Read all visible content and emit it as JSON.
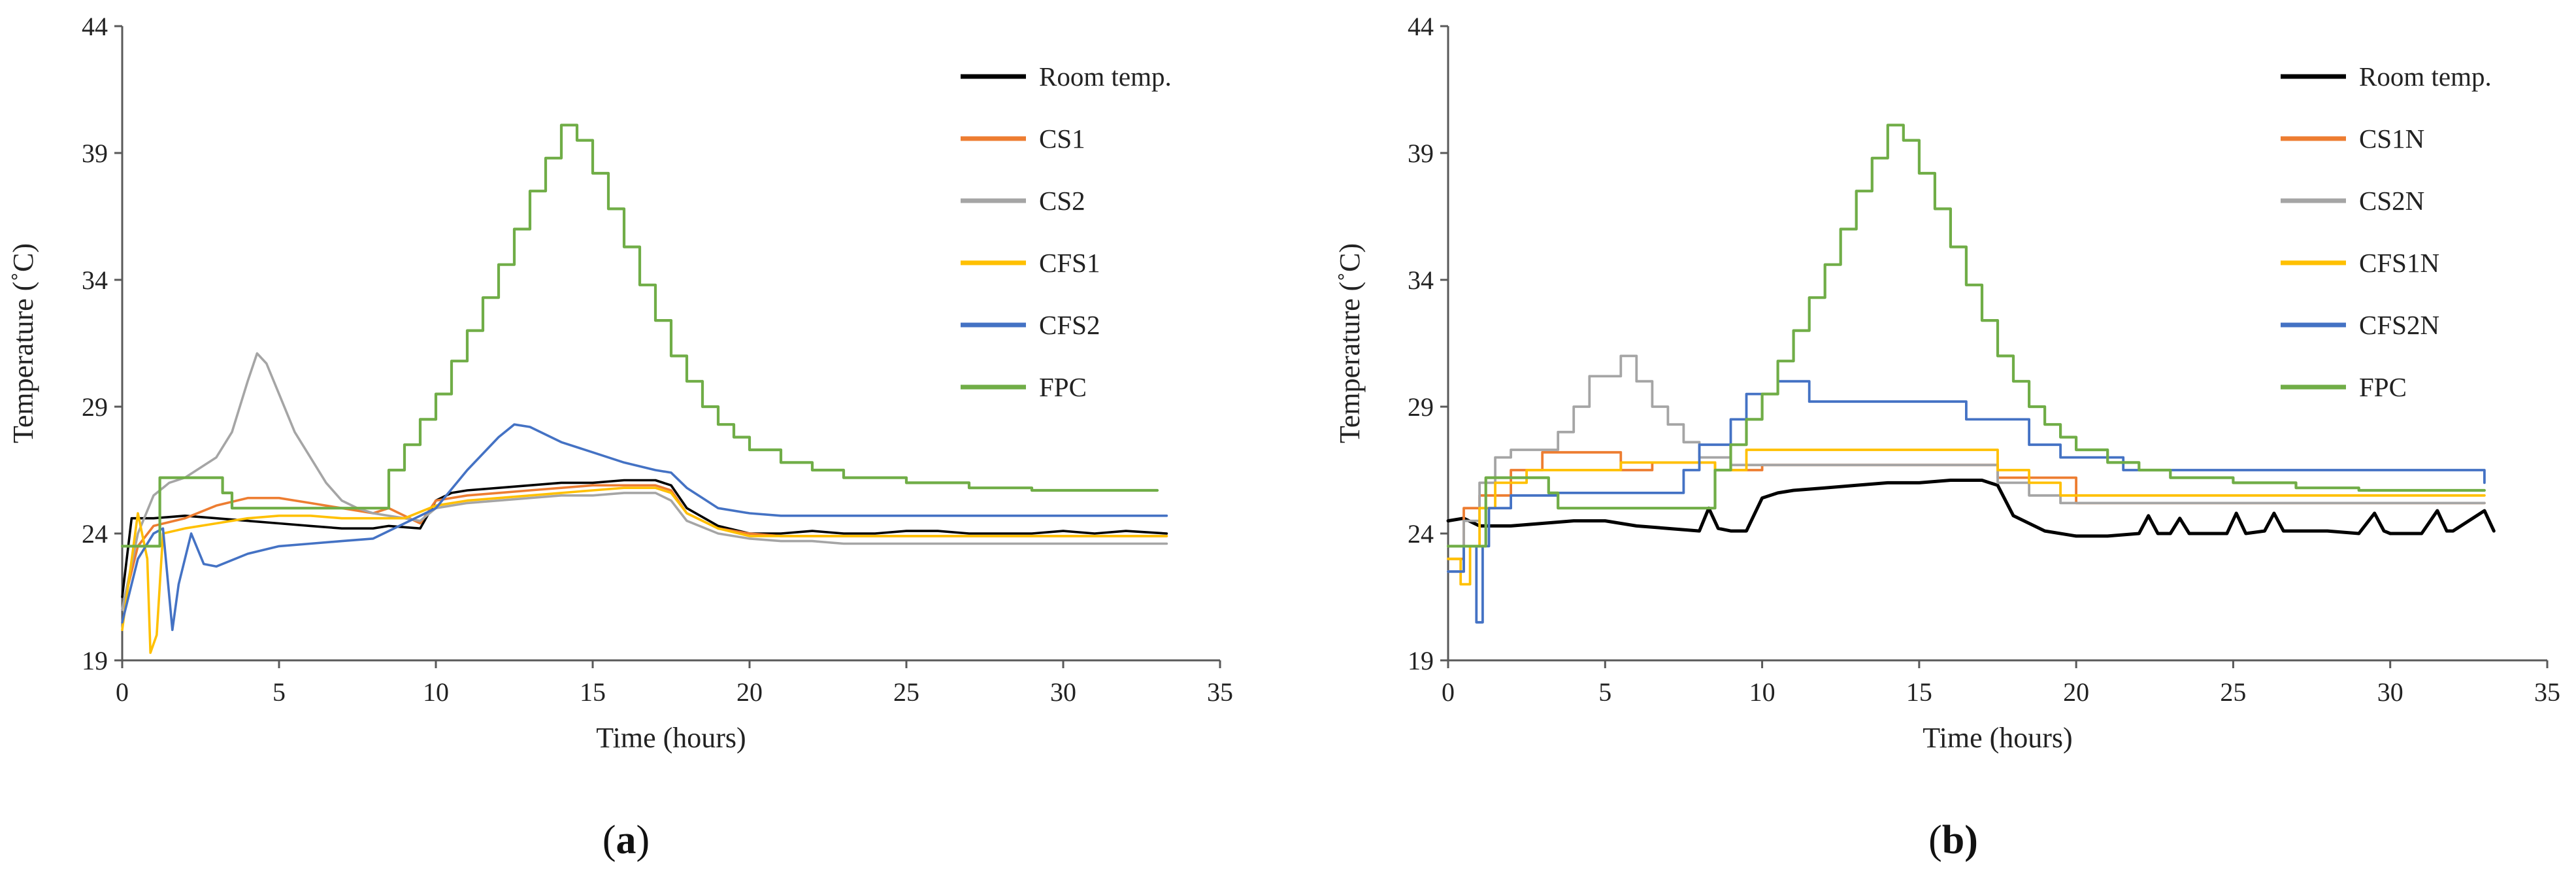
{
  "figure": {
    "panel_captions": [
      {
        "open": "(",
        "letter": "a",
        "close": ")"
      },
      {
        "open": "(",
        "letter": "b",
        "close": ")"
      }
    ]
  },
  "colors": {
    "Room temp.": "#000000",
    "orange": "#ED7D31",
    "gray": "#A5A5A5",
    "yellow": "#FFC000",
    "blue": "#4472C4",
    "green": "#70AD47"
  },
  "chart_data": [
    {
      "type": "line",
      "panel": "a",
      "title": "",
      "xlabel": "Time (hours)",
      "ylabel": "Temperature (˚C)",
      "xlim": [
        0,
        35
      ],
      "ylim": [
        19,
        44
      ],
      "xticks": [
        0,
        5,
        10,
        15,
        20,
        25,
        30,
        35
      ],
      "yticks": [
        19,
        24,
        29,
        34,
        39,
        44
      ],
      "legend_position": "top-right",
      "series": [
        {
          "name": "Room temp.",
          "color": "#000000",
          "width": 3.6,
          "step": false,
          "x": [
            0,
            0.3,
            0.6,
            1,
            2,
            3,
            4,
            5,
            6,
            7,
            8,
            8.5,
            9.5,
            10,
            10.5,
            11,
            12,
            13,
            14,
            15,
            16,
            17,
            17.5,
            18,
            19,
            20,
            21,
            22,
            23,
            24,
            25,
            26,
            27,
            28,
            29,
            30,
            31,
            32,
            33.3
          ],
          "y": [
            21.5,
            24.6,
            24.6,
            24.6,
            24.7,
            24.6,
            24.5,
            24.4,
            24.3,
            24.2,
            24.2,
            24.3,
            24.2,
            25.3,
            25.6,
            25.7,
            25.8,
            25.9,
            26.0,
            26.0,
            26.1,
            26.1,
            25.9,
            25.0,
            24.3,
            24.0,
            24.0,
            24.1,
            24.0,
            24.0,
            24.1,
            24.1,
            24.0,
            24.0,
            24.0,
            24.1,
            24.0,
            24.1,
            24.0
          ]
        },
        {
          "name": "CS1",
          "color": "#ED7D31",
          "width": 3.6,
          "step": false,
          "x": [
            0,
            0.5,
            1,
            2,
            3,
            4,
            5,
            6,
            7,
            8,
            8.5,
            9.5,
            10,
            11,
            12,
            13,
            14,
            15,
            16,
            17,
            17.5,
            18,
            19,
            20,
            21,
            22,
            23,
            24,
            25,
            26,
            27,
            28,
            29,
            30,
            31,
            32,
            33.3
          ],
          "y": [
            21.0,
            23.5,
            24.3,
            24.6,
            25.1,
            25.4,
            25.4,
            25.2,
            25.0,
            24.8,
            25.0,
            24.4,
            25.3,
            25.5,
            25.6,
            25.7,
            25.8,
            25.9,
            25.9,
            25.9,
            25.7,
            24.8,
            24.2,
            24.0,
            23.9,
            23.9,
            23.9,
            23.9,
            23.9,
            23.9,
            23.9,
            23.9,
            23.9,
            23.9,
            23.9,
            23.9,
            23.9
          ]
        },
        {
          "name": "CS2",
          "color": "#A5A5A5",
          "width": 3.6,
          "step": false,
          "x": [
            0,
            0.5,
            1,
            1.5,
            2,
            3,
            3.5,
            4,
            4.3,
            4.6,
            5,
            5.5,
            6,
            6.5,
            7,
            7.5,
            8,
            9,
            9.5,
            10,
            11,
            12,
            13,
            14,
            15,
            16,
            17,
            17.5,
            18,
            19,
            20,
            21,
            22,
            23,
            24,
            25,
            26,
            27,
            28,
            29,
            30,
            31,
            32,
            33.3
          ],
          "y": [
            21.0,
            24.0,
            25.5,
            26.0,
            26.2,
            27.0,
            28.0,
            30.0,
            31.1,
            30.7,
            29.5,
            28.0,
            27.0,
            26.0,
            25.3,
            25.0,
            24.8,
            24.6,
            24.5,
            25.0,
            25.2,
            25.3,
            25.4,
            25.5,
            25.5,
            25.6,
            25.6,
            25.3,
            24.5,
            24.0,
            23.8,
            23.7,
            23.7,
            23.6,
            23.6,
            23.6,
            23.6,
            23.6,
            23.6,
            23.6,
            23.6,
            23.6,
            23.6,
            23.6
          ]
        },
        {
          "name": "CFS1",
          "color": "#FFC000",
          "width": 3.6,
          "step": false,
          "x": [
            0,
            0.5,
            0.8,
            0.9,
            1.1,
            1.3,
            2,
            3,
            4,
            5,
            6,
            7,
            8,
            9,
            10,
            11,
            12,
            13,
            14,
            15,
            16,
            17,
            17.5,
            18,
            19,
            20,
            21,
            22,
            23,
            24,
            25,
            26,
            27,
            28,
            29,
            30,
            31,
            32,
            33.3
          ],
          "y": [
            20.2,
            24.8,
            23.0,
            19.3,
            20.0,
            24.0,
            24.2,
            24.4,
            24.6,
            24.7,
            24.7,
            24.6,
            24.6,
            24.6,
            25.1,
            25.3,
            25.4,
            25.5,
            25.6,
            25.7,
            25.8,
            25.8,
            25.6,
            24.8,
            24.2,
            23.9,
            23.9,
            23.9,
            23.9,
            23.9,
            23.9,
            23.9,
            23.9,
            23.9,
            23.9,
            23.9,
            23.9,
            23.9,
            23.9
          ]
        },
        {
          "name": "CFS2",
          "color": "#4472C4",
          "width": 3.6,
          "step": false,
          "x": [
            0,
            0.5,
            1,
            1.3,
            1.6,
            1.8,
            2.2,
            2.6,
            3,
            4,
            5,
            6,
            7,
            8,
            9,
            10,
            11,
            12,
            12.5,
            13,
            14,
            15,
            16,
            17,
            17.5,
            18,
            19,
            20,
            21,
            22,
            23,
            24,
            25,
            26,
            27,
            28,
            29,
            30,
            31,
            32,
            33.3
          ],
          "y": [
            20.5,
            23.0,
            24.0,
            24.2,
            20.2,
            22.0,
            24.0,
            22.8,
            22.7,
            23.2,
            23.5,
            23.6,
            23.7,
            23.8,
            24.4,
            25.0,
            26.5,
            27.8,
            28.3,
            28.2,
            27.6,
            27.2,
            26.8,
            26.5,
            26.4,
            25.8,
            25.0,
            24.8,
            24.7,
            24.7,
            24.7,
            24.7,
            24.7,
            24.7,
            24.7,
            24.7,
            24.7,
            24.7,
            24.7,
            24.7,
            24.7
          ]
        },
        {
          "name": "FPC",
          "color": "#70AD47",
          "width": 4.2,
          "step": true,
          "x": [
            0,
            1.2,
            1.5,
            3.2,
            3.5,
            7.5,
            8.5,
            9,
            9.5,
            10,
            10.5,
            11,
            11.5,
            12,
            12.5,
            13,
            13.5,
            14,
            14.5,
            15,
            15.5,
            16,
            16.5,
            17,
            17.5,
            18,
            18.5,
            19,
            19.5,
            20,
            21,
            22,
            23,
            25,
            27,
            29,
            33
          ],
          "y": [
            23.5,
            26.2,
            26.2,
            25.6,
            25.0,
            25.0,
            26.5,
            27.5,
            28.5,
            29.5,
            30.8,
            32.0,
            33.3,
            34.6,
            36.0,
            37.5,
            38.8,
            40.1,
            39.5,
            38.2,
            36.8,
            35.3,
            33.8,
            32.4,
            31.0,
            30.0,
            29.0,
            28.3,
            27.8,
            27.3,
            26.8,
            26.5,
            26.2,
            26.0,
            25.8,
            25.7,
            25.7
          ]
        }
      ]
    },
    {
      "type": "line",
      "panel": "b",
      "title": "",
      "xlabel": "Time (hours)",
      "ylabel": "Temperature (˚C)",
      "xlim": [
        0,
        35
      ],
      "ylim": [
        19,
        44
      ],
      "xticks": [
        0,
        5,
        10,
        15,
        20,
        25,
        30,
        35
      ],
      "yticks": [
        19,
        24,
        29,
        34,
        39,
        44
      ],
      "legend_position": "top-right",
      "series": [
        {
          "name": "Room temp.",
          "color": "#000000",
          "width": 5.0,
          "step": false,
          "x": [
            0,
            0.5,
            1,
            2,
            3,
            4,
            5,
            6,
            7,
            8,
            8.3,
            8.6,
            9,
            9.5,
            10,
            10.5,
            11,
            12,
            13,
            14,
            15,
            16,
            17,
            17.5,
            18,
            19,
            20,
            21,
            22,
            22.3,
            22.6,
            23,
            23.3,
            23.6,
            24,
            24.8,
            25.1,
            25.4,
            26,
            26.3,
            26.6,
            27,
            28,
            29,
            29.5,
            29.8,
            30,
            31,
            31.5,
            31.8,
            32,
            33,
            33.3
          ],
          "y": [
            24.5,
            24.6,
            24.3,
            24.3,
            24.4,
            24.5,
            24.5,
            24.3,
            24.2,
            24.1,
            25.0,
            24.2,
            24.1,
            24.1,
            25.4,
            25.6,
            25.7,
            25.8,
            25.9,
            26.0,
            26.0,
            26.1,
            26.1,
            25.9,
            24.7,
            24.1,
            23.9,
            23.9,
            24.0,
            24.7,
            24.0,
            24.0,
            24.6,
            24.0,
            24.0,
            24.0,
            24.8,
            24.0,
            24.1,
            24.8,
            24.1,
            24.1,
            24.1,
            24.0,
            24.8,
            24.1,
            24.0,
            24.0,
            24.9,
            24.1,
            24.1,
            24.9,
            24.1
          ]
        },
        {
          "name": "CS1N",
          "color": "#ED7D31",
          "width": 3.8,
          "step": true,
          "x": [
            0,
            0.5,
            1.0,
            2.0,
            3.0,
            5.5,
            6.5,
            8.5,
            10,
            17.5,
            20,
            33
          ],
          "y": [
            23.0,
            25.0,
            25.5,
            26.5,
            27.2,
            26.5,
            26.8,
            26.5,
            26.7,
            26.2,
            25.2,
            25.2
          ]
        },
        {
          "name": "CS2N",
          "color": "#A5A5A5",
          "width": 3.8,
          "step": true,
          "x": [
            0,
            0.5,
            1.0,
            1.5,
            2.0,
            3.5,
            4.0,
            4.5,
            5.5,
            6.0,
            6.5,
            7.0,
            7.5,
            8.0,
            9.0,
            17.5,
            18.5,
            19.5,
            33
          ],
          "y": [
            22.5,
            24.5,
            26.0,
            27.0,
            27.3,
            28.0,
            29.0,
            30.2,
            31.0,
            30.0,
            29.0,
            28.3,
            27.6,
            27.0,
            26.7,
            26.0,
            25.5,
            25.2,
            25.2
          ]
        },
        {
          "name": "CFS1N",
          "color": "#FFC000",
          "width": 3.8,
          "step": true,
          "x": [
            0,
            0.4,
            0.7,
            1.0,
            1.5,
            2.5,
            5.5,
            8.5,
            9.5,
            17.5,
            18.5,
            19.5,
            33
          ],
          "y": [
            23.0,
            22.0,
            23.5,
            25.0,
            26.0,
            26.5,
            26.8,
            26.5,
            27.3,
            26.5,
            26.0,
            25.5,
            25.5
          ]
        },
        {
          "name": "CFS2N",
          "color": "#4472C4",
          "width": 3.8,
          "step": true,
          "x": [
            0,
            0.5,
            0.9,
            1.1,
            1.3,
            2.0,
            3.5,
            7.5,
            8.0,
            9.0,
            9.5,
            10.5,
            11.5,
            16.5,
            18.5,
            19.5,
            21.5,
            33
          ],
          "y": [
            22.5,
            23.5,
            20.5,
            23.5,
            25.0,
            25.5,
            25.6,
            26.5,
            27.5,
            28.5,
            29.5,
            30.0,
            29.2,
            28.5,
            27.5,
            27.0,
            26.5,
            26.0
          ]
        },
        {
          "name": "FPC",
          "color": "#70AD47",
          "width": 4.2,
          "step": true,
          "x": [
            0,
            1.2,
            1.5,
            3.2,
            3.5,
            7.5,
            8.5,
            9,
            9.5,
            10,
            10.5,
            11,
            11.5,
            12,
            12.5,
            13,
            13.5,
            14,
            14.5,
            15,
            15.5,
            16,
            16.5,
            17,
            17.5,
            18,
            18.5,
            19,
            19.5,
            20,
            21,
            22,
            23,
            25,
            27,
            29,
            33
          ],
          "y": [
            23.5,
            26.2,
            26.2,
            25.6,
            25.0,
            25.0,
            26.5,
            27.5,
            28.5,
            29.5,
            30.8,
            32.0,
            33.3,
            34.6,
            36.0,
            37.5,
            38.8,
            40.1,
            39.5,
            38.2,
            36.8,
            35.3,
            33.8,
            32.4,
            31.0,
            30.0,
            29.0,
            28.3,
            27.8,
            27.3,
            26.8,
            26.5,
            26.2,
            26.0,
            25.8,
            25.7,
            25.7
          ]
        }
      ]
    }
  ]
}
